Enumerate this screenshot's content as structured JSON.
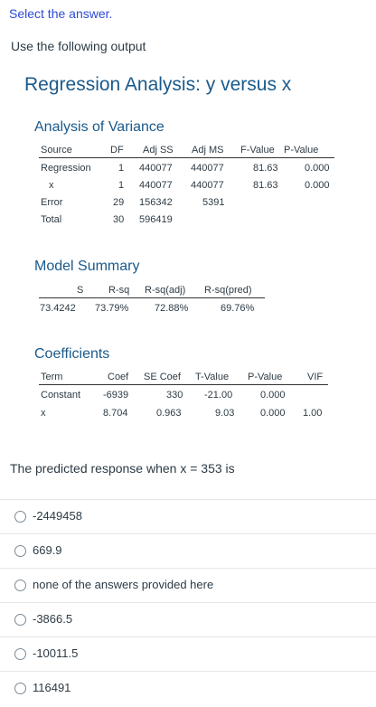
{
  "prompt": "Select the answer.",
  "intro": "Use the following output",
  "title": "Regression Analysis: y versus x",
  "anova": {
    "title": "Analysis of Variance",
    "headers": [
      "Source",
      "DF",
      "Adj SS",
      "Adj MS",
      "F-Value",
      "P-Value"
    ],
    "rows": [
      [
        "Regression",
        "1",
        "440077",
        "440077",
        "81.63",
        "0.000"
      ],
      [
        "x",
        "1",
        "440077",
        "440077",
        "81.63",
        "0.000"
      ],
      [
        "Error",
        "29",
        "156342",
        "5391",
        "",
        ""
      ],
      [
        "Total",
        "30",
        "596419",
        "",
        "",
        ""
      ]
    ]
  },
  "model_summary": {
    "title": "Model Summary",
    "headers": [
      "S",
      "R-sq",
      "R-sq(adj)",
      "R-sq(pred)"
    ],
    "row": [
      "73.4242",
      "73.79%",
      "72.88%",
      "69.76%"
    ]
  },
  "coefficients": {
    "title": "Coefficients",
    "headers": [
      "Term",
      "Coef",
      "SE Coef",
      "T-Value",
      "P-Value",
      "VIF"
    ],
    "rows": [
      [
        "Constant",
        "-6939",
        "330",
        "-21.00",
        "0.000",
        ""
      ],
      [
        "x",
        "8.704",
        "0.963",
        "9.03",
        "0.000",
        "1.00"
      ]
    ]
  },
  "question": "The predicted response when x = 353 is",
  "options": [
    "-2449458",
    "669.9",
    "none of the answers provided here",
    "-3866.5",
    "-10011.5",
    "116491"
  ]
}
